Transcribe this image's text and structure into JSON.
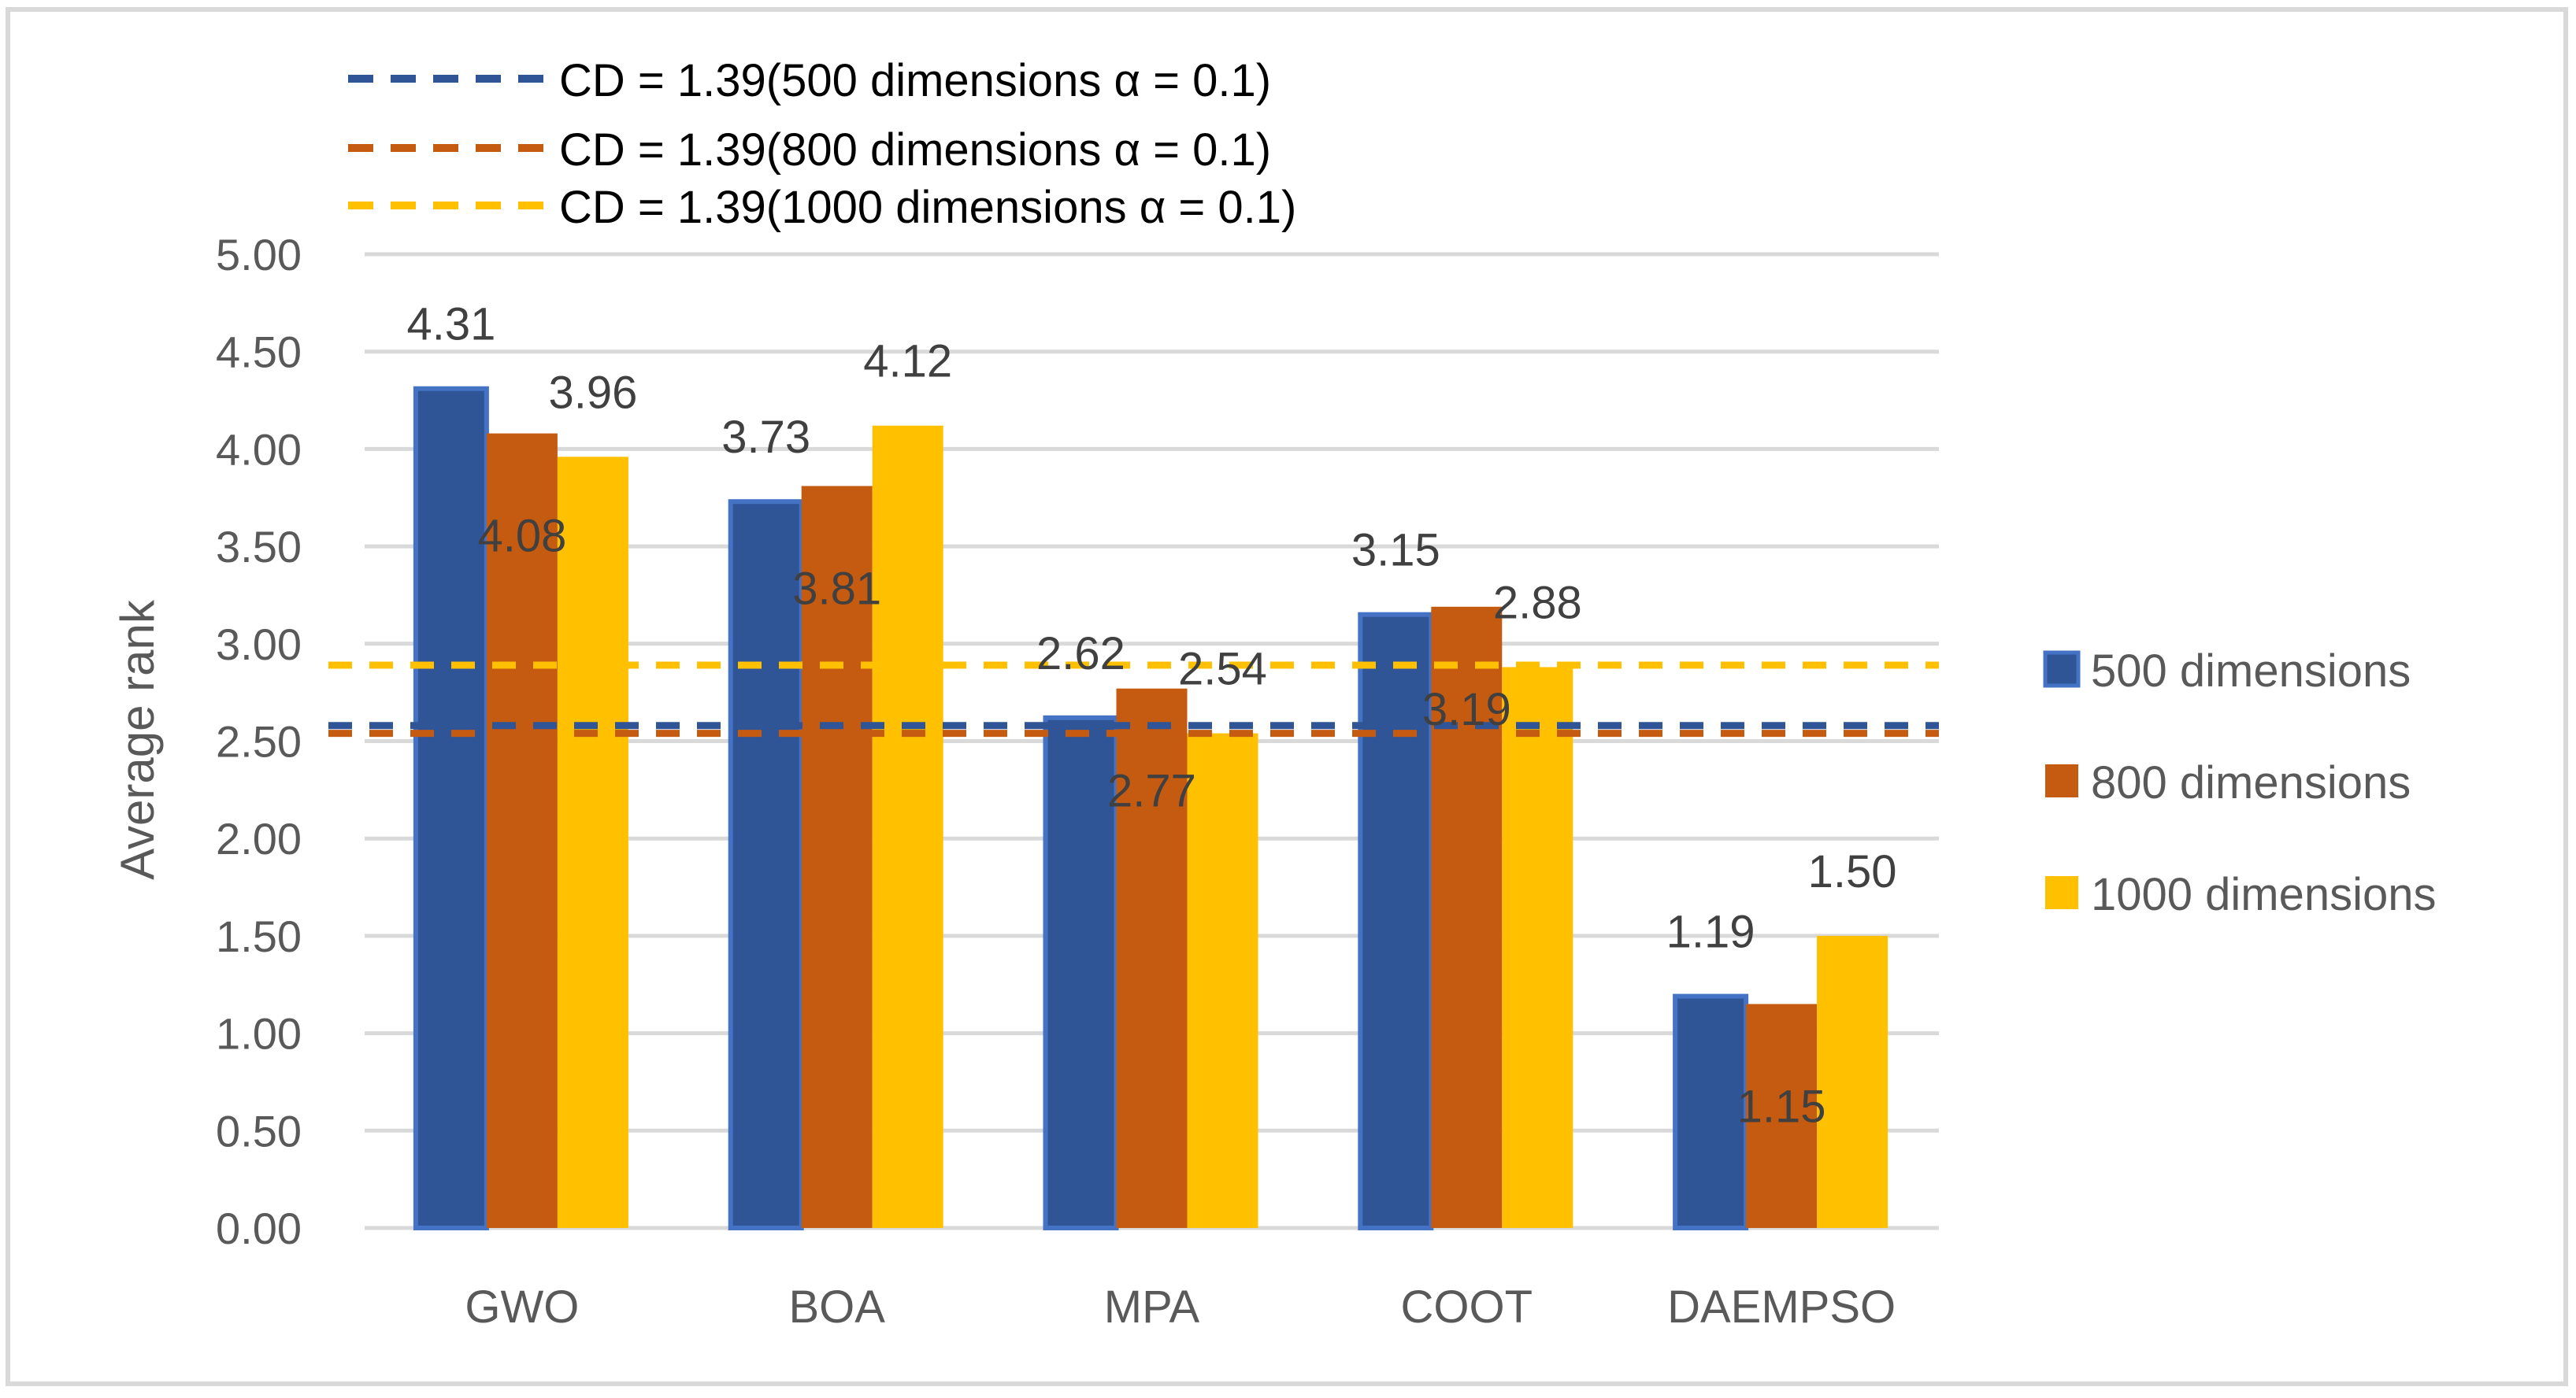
{
  "chart_data": {
    "type": "bar",
    "title": "",
    "xlabel": "",
    "ylabel": "Average rank",
    "ylim": [
      0,
      5
    ],
    "yticks": [
      "0.00",
      "0.50",
      "1.00",
      "1.50",
      "2.00",
      "2.50",
      "3.00",
      "3.50",
      "4.00",
      "4.50",
      "5.00"
    ],
    "grid": true,
    "categories": [
      "GWO",
      "BOA",
      "MPA",
      "COOT",
      "DAEMPSO"
    ],
    "series": [
      {
        "name": "500 dimensions",
        "color": "#2F5597",
        "values": [
          4.31,
          3.73,
          2.62,
          3.15,
          1.19
        ],
        "labels": [
          "4.31",
          "3.73",
          "2.62",
          "3.15",
          "1.19"
        ]
      },
      {
        "name": "800 dimensions",
        "color": "#C55A11",
        "values": [
          4.08,
          3.81,
          2.77,
          3.19,
          1.15
        ],
        "labels": [
          "4.08",
          "3.81",
          "2.77",
          "3.19",
          "1.15"
        ]
      },
      {
        "name": "1000 dimensions",
        "color": "#FFC000",
        "values": [
          3.96,
          4.12,
          2.54,
          2.88,
          1.5
        ],
        "labels": [
          "3.96",
          "4.12",
          "2.54",
          "2.88",
          "1.50"
        ]
      }
    ],
    "reference_lines": [
      {
        "name": "CD = 1.39(500 dimensions α = 0.1)",
        "color": "#2F5597",
        "value": 2.58
      },
      {
        "name": "CD = 1.39(800 dimensions α = 0.1)",
        "color": "#C55A11",
        "value": 2.54
      },
      {
        "name": "CD = 1.39(1000 dimensions α = 0.1)",
        "color": "#FFC000",
        "value": 2.89
      }
    ],
    "legend_position": "right",
    "reference_legend_position": "top-left"
  }
}
